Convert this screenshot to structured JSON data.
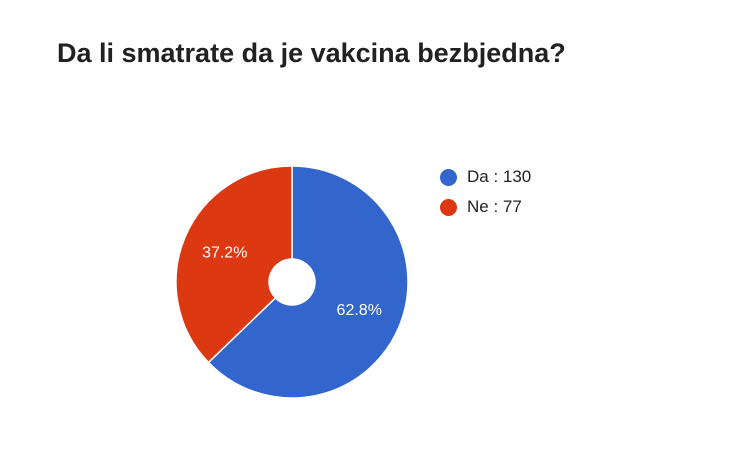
{
  "chart_data": {
    "type": "pie",
    "title": "Da li smatrate da je vakcina bezbjedna?",
    "donut": true,
    "legend_position": "right",
    "slices": [
      {
        "label": "Da",
        "value": 130,
        "percent": "62.8%",
        "color": "#3366cc",
        "legend_text": "Da : 130"
      },
      {
        "label": "Ne",
        "value": 77,
        "percent": "37.2%",
        "color": "#dc3912",
        "legend_text": "Ne : 77"
      }
    ]
  }
}
